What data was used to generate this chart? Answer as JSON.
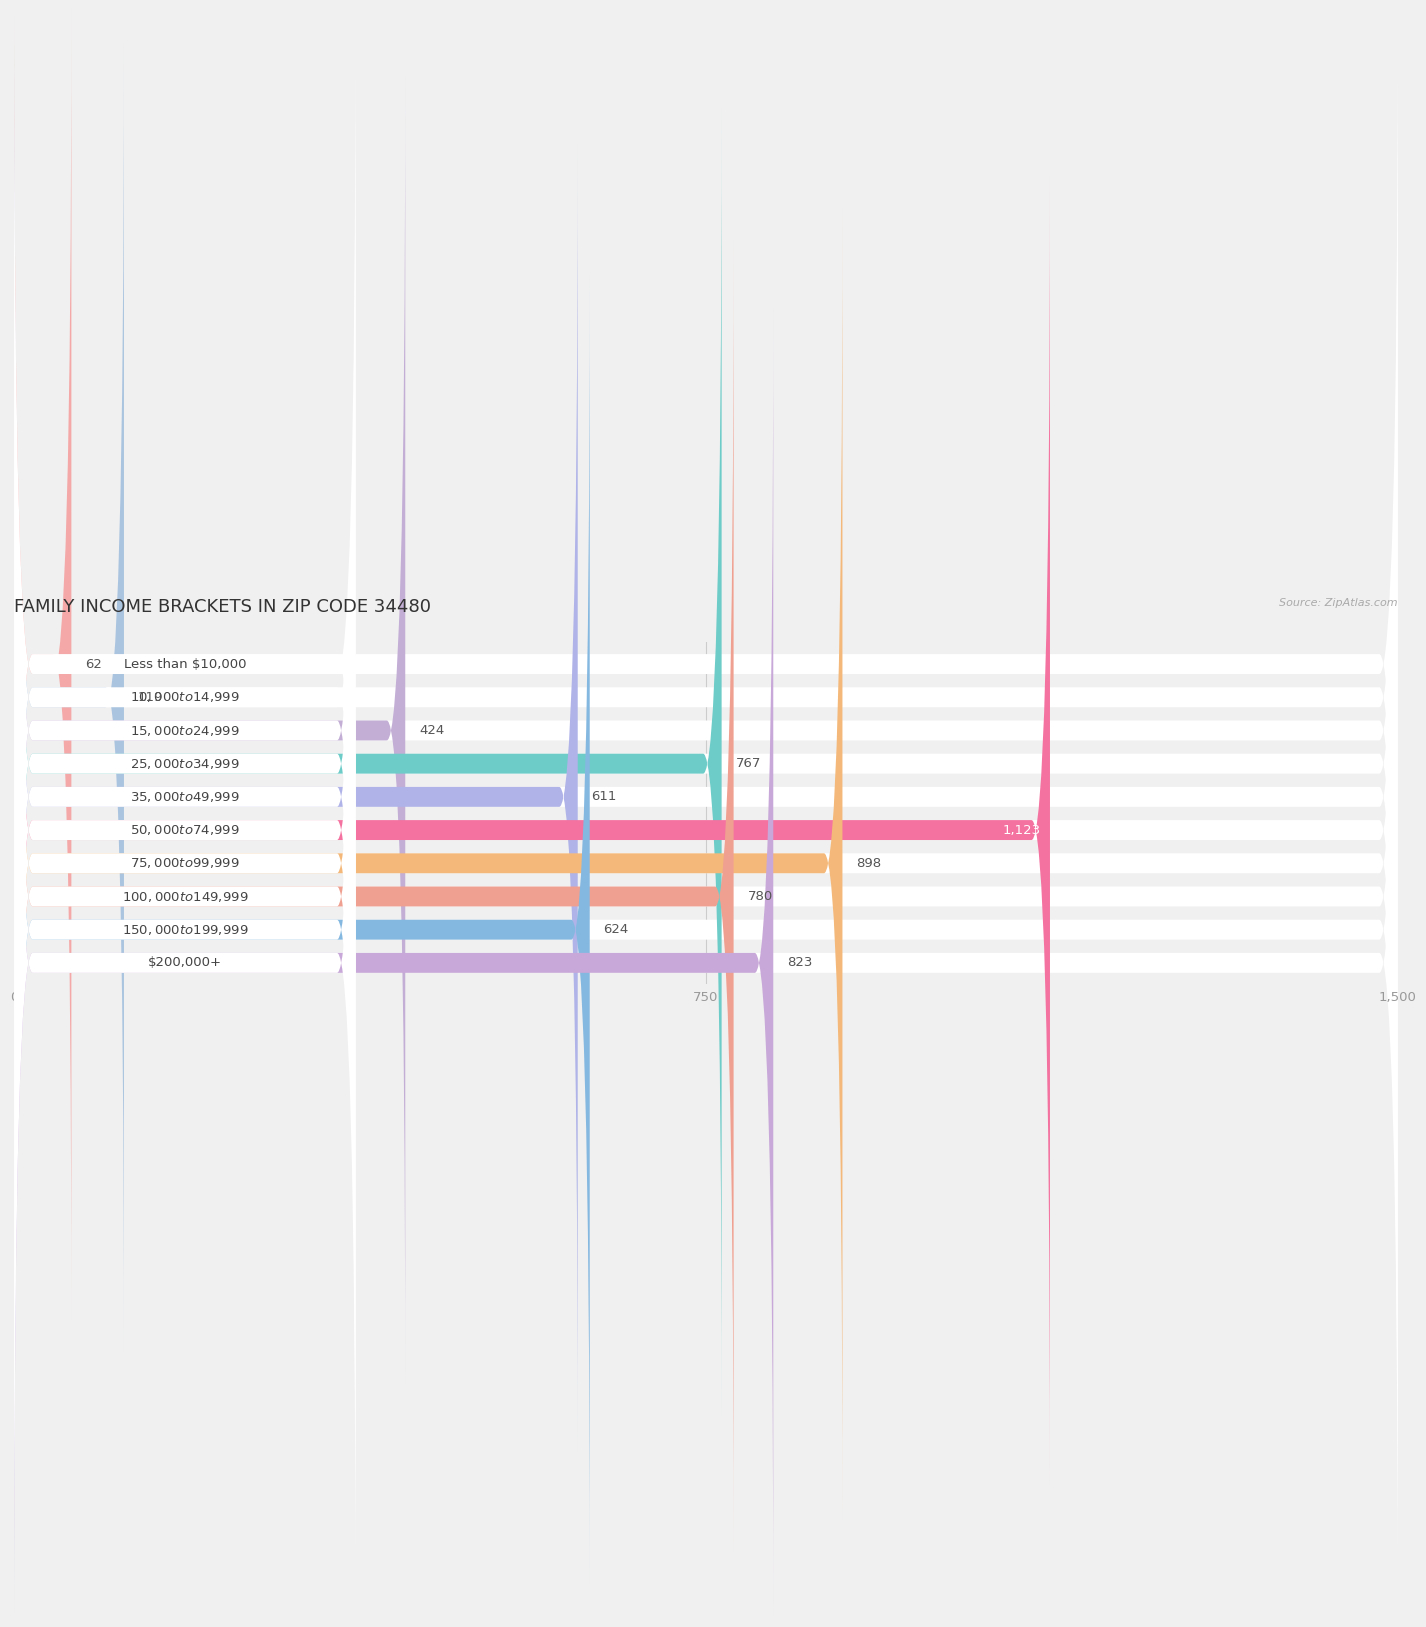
{
  "title": "FAMILY INCOME BRACKETS IN ZIP CODE 34480",
  "source": "Source: ZipAtlas.com",
  "categories": [
    "Less than $10,000",
    "$10,000 to $14,999",
    "$15,000 to $24,999",
    "$25,000 to $34,999",
    "$35,000 to $49,999",
    "$50,000 to $74,999",
    "$75,000 to $99,999",
    "$100,000 to $149,999",
    "$150,000 to $199,999",
    "$200,000+"
  ],
  "values": [
    62,
    119,
    424,
    767,
    611,
    1123,
    898,
    780,
    624,
    823
  ],
  "bar_colors": [
    "#f4a9a8",
    "#aac4e0",
    "#c3aed6",
    "#6dccc8",
    "#b0b3e8",
    "#f472a0",
    "#f4b97a",
    "#f0a090",
    "#85b8e0",
    "#c8a8d8"
  ],
  "xlim": [
    0,
    1500
  ],
  "xticks": [
    0,
    750,
    1500
  ],
  "xtick_labels": [
    "0",
    "750",
    "1,500"
  ],
  "title_fontsize": 13,
  "label_fontsize": 9.5,
  "value_fontsize": 9.5,
  "background_color": "#f0f0f0",
  "bar_bg_color": "#ffffff",
  "label_bg_color": "#ffffff",
  "grid_color": "#cccccc",
  "bar_height": 0.6,
  "bar_spacing": 1.0
}
